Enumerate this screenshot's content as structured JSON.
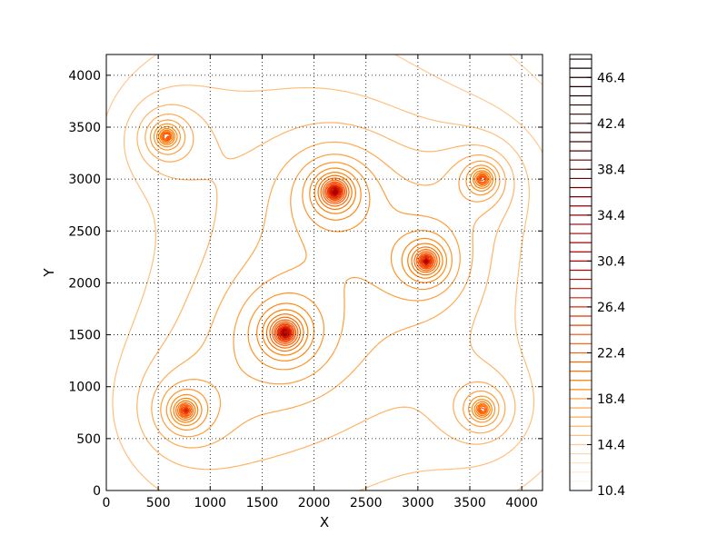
{
  "chart_data": {
    "type": "contour",
    "title": "",
    "xlabel": "X",
    "ylabel": "Y",
    "xlim": [
      0,
      4200
    ],
    "ylim": [
      0,
      4200
    ],
    "x_ticks": [
      0,
      500,
      1000,
      1500,
      2000,
      2500,
      3000,
      3500,
      4000
    ],
    "y_ticks": [
      0,
      500,
      1000,
      1500,
      2000,
      2500,
      3000,
      3500,
      4000
    ],
    "grid": true,
    "colormap": "gist_heat_r",
    "levels_min": 10.4,
    "levels_max": 48.4,
    "level_step": 0.8,
    "colorbar": {
      "ticks": [
        10.4,
        14.4,
        18.4,
        22.4,
        26.4,
        30.4,
        34.4,
        38.4,
        42.4,
        46.4
      ]
    },
    "sources": [
      {
        "x": 2200,
        "y": 2880,
        "strength": 1.0
      },
      {
        "x": 1720,
        "y": 1520,
        "strength": 1.0
      },
      {
        "x": 3080,
        "y": 2210,
        "strength": 0.85
      },
      {
        "x": 580,
        "y": 3410,
        "strength": 0.65
      },
      {
        "x": 3620,
        "y": 3000,
        "strength": 0.65
      },
      {
        "x": 760,
        "y": 770,
        "strength": 0.7
      },
      {
        "x": 3620,
        "y": 780,
        "strength": 0.6
      }
    ]
  }
}
